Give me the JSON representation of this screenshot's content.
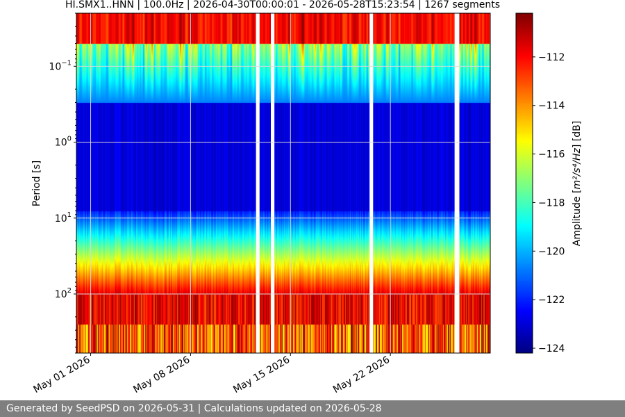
{
  "colors": {
    "footer_bg": "#7f7f7f",
    "footer_text": "#ffffff",
    "grid": "#d9d9d9",
    "colormap": "jet"
  },
  "footer": {
    "text": "Generated by SeedPSD on 2026-05-31 | Calculations updated on 2026-05-28"
  },
  "chart_data": {
    "type": "heatmap",
    "title": "HI.SMX1..HNN | 100.0Hz | 2026-04-30T00:00:01 - 2026-05-28T15:23:54 | 1267 segments",
    "ylabel": "Period [s]",
    "y_scale": "log",
    "y_inverted": true,
    "ylim": [
      0.02,
      600
    ],
    "xlim": [
      "2026-04-30",
      "2026-05-29"
    ],
    "x_ticks": [
      {
        "date": "2026-05-01",
        "label": "May 01 2026"
      },
      {
        "date": "2026-05-08",
        "label": "May 08 2026"
      },
      {
        "date": "2026-05-15",
        "label": "May 15 2026"
      },
      {
        "date": "2026-05-22",
        "label": "May 22 2026"
      }
    ],
    "y_ticks": [
      {
        "value": 0.1,
        "base": "10",
        "exp": "−1"
      },
      {
        "value": 1,
        "base": "10",
        "exp": "0"
      },
      {
        "value": 10,
        "base": "10",
        "exp": "1"
      },
      {
        "value": 100,
        "base": "10",
        "exp": "2"
      }
    ],
    "grid": true,
    "colorbar": {
      "label_pre": "Amplitude [",
      "label_math": "m²/s⁴/Hz",
      "label_post": "] [dB]",
      "range": [
        -124.2,
        -110.2
      ],
      "ticks": [
        -112,
        -114,
        -116,
        -118,
        -120,
        -122,
        -124
      ],
      "tick_labels": [
        "−112",
        "−114",
        "−116",
        "−118",
        "−120",
        "−122",
        "−124"
      ]
    },
    "gaps": [
      {
        "start": "2026-05-12T14:00",
        "end": "2026-05-12T20:00"
      },
      {
        "start": "2026-05-13T15:00",
        "end": "2026-05-13T21:00"
      },
      {
        "start": "2026-05-20T13:00",
        "end": "2026-05-20T19:00"
      },
      {
        "start": "2026-05-26T12:00",
        "end": "2026-05-26T20:00"
      }
    ]
  }
}
